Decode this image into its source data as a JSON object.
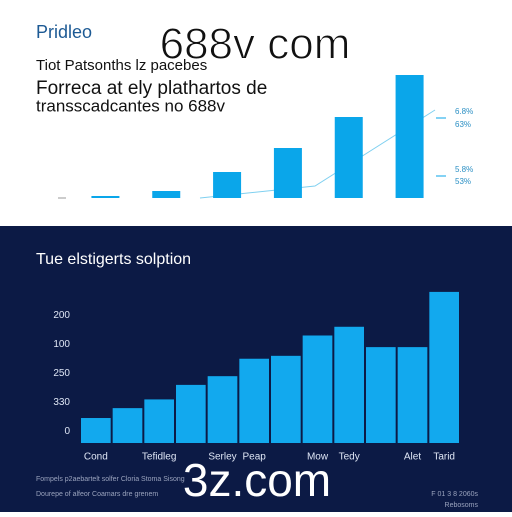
{
  "chart_data": [
    {
      "type": "bar",
      "title": "Pridleo",
      "subtitle": [
        "Tiot Patsonths lz pacebes",
        "Forreca at ely plathartos de",
        "transscadcantes no 688v"
      ],
      "values": [
        2,
        7,
        26,
        50,
        81,
        123
      ],
      "color": "#0aa6ea",
      "annotations": [
        "6.8%",
        "63%",
        "5.8%",
        "53%"
      ]
    },
    {
      "type": "bar",
      "title": "Tue elstigerts solption",
      "categories": [
        "Cond",
        null,
        "Tefidleg",
        null,
        "Serley",
        "Peap",
        null,
        "Mow",
        "Tedy",
        null,
        "Alet",
        "Tarid"
      ],
      "values": [
        0.86,
        1.2,
        1.5,
        2.0,
        2.3,
        2.9,
        3.0,
        3.7,
        4.0,
        3.3,
        3.3,
        5.2
      ],
      "color": "#12a9ee",
      "ylim": [
        0,
        5.3
      ],
      "yticks": [
        {
          "value": 0.4,
          "label": "0"
        },
        {
          "value": 1.4,
          "label": "330"
        },
        {
          "value": 2.4,
          "label": "250"
        },
        {
          "value": 3.4,
          "label": "100"
        },
        {
          "value": 4.4,
          "label": "200"
        }
      ]
    }
  ],
  "watermarks": [
    "688v com",
    "3z.com"
  ],
  "footer": {
    "left": [
      "Fompels p2aebartelt solfer Cloria Stoma Sisong",
      "Dourepe of alfeor Coamars dre grenem"
    ],
    "right": [
      "F 01 3 8 2060s",
      "Rebosoms"
    ]
  }
}
